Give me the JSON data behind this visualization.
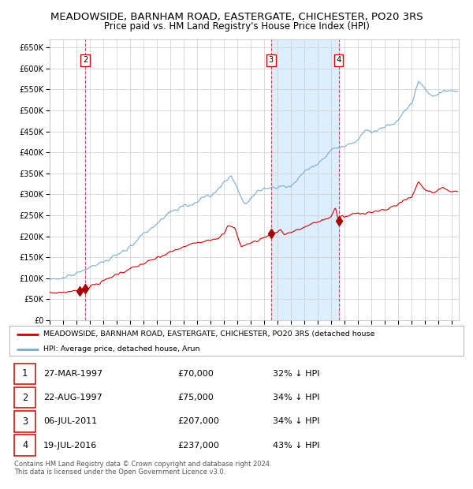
{
  "title": "MEADOWSIDE, BARNHAM ROAD, EASTERGATE, CHICHESTER, PO20 3RS",
  "subtitle": "Price paid vs. HM Land Registry's House Price Index (HPI)",
  "ylim": [
    0,
    670000
  ],
  "yticks": [
    0,
    50000,
    100000,
    150000,
    200000,
    250000,
    300000,
    350000,
    400000,
    450000,
    500000,
    550000,
    600000,
    650000
  ],
  "xlim_start": 1995.0,
  "xlim_end": 2025.5,
  "sale_dates_decimal": [
    1997.23,
    1997.64,
    2011.51,
    2016.54
  ],
  "sale_prices": [
    70000,
    75000,
    207000,
    237000
  ],
  "vline_dates": [
    1997.64,
    2011.51,
    2016.54
  ],
  "shade_start": 2011.51,
  "shade_end": 2016.54,
  "red_line_color": "#cc0000",
  "blue_line_color": "#7aadcc",
  "shade_color": "#ddeeff",
  "marker_color": "#aa0000",
  "grid_color": "#cccccc",
  "background_color": "#ffffff",
  "legend_label_red": "MEADOWSIDE, BARNHAM ROAD, EASTERGATE, CHICHESTER, PO20 3RS (detached house",
  "legend_label_blue": "HPI: Average price, detached house, Arun",
  "table_data": [
    [
      "1",
      "27-MAR-1997",
      "£70,000",
      "32% ↓ HPI"
    ],
    [
      "2",
      "22-AUG-1997",
      "£75,000",
      "34% ↓ HPI"
    ],
    [
      "3",
      "06-JUL-2011",
      "£207,000",
      "34% ↓ HPI"
    ],
    [
      "4",
      "19-JUL-2016",
      "£237,000",
      "43% ↓ HPI"
    ]
  ],
  "footnote": "Contains HM Land Registry data © Crown copyright and database right 2024.\nThis data is licensed under the Open Government Licence v3.0.",
  "title_fontsize": 9.5,
  "subtitle_fontsize": 8.5
}
